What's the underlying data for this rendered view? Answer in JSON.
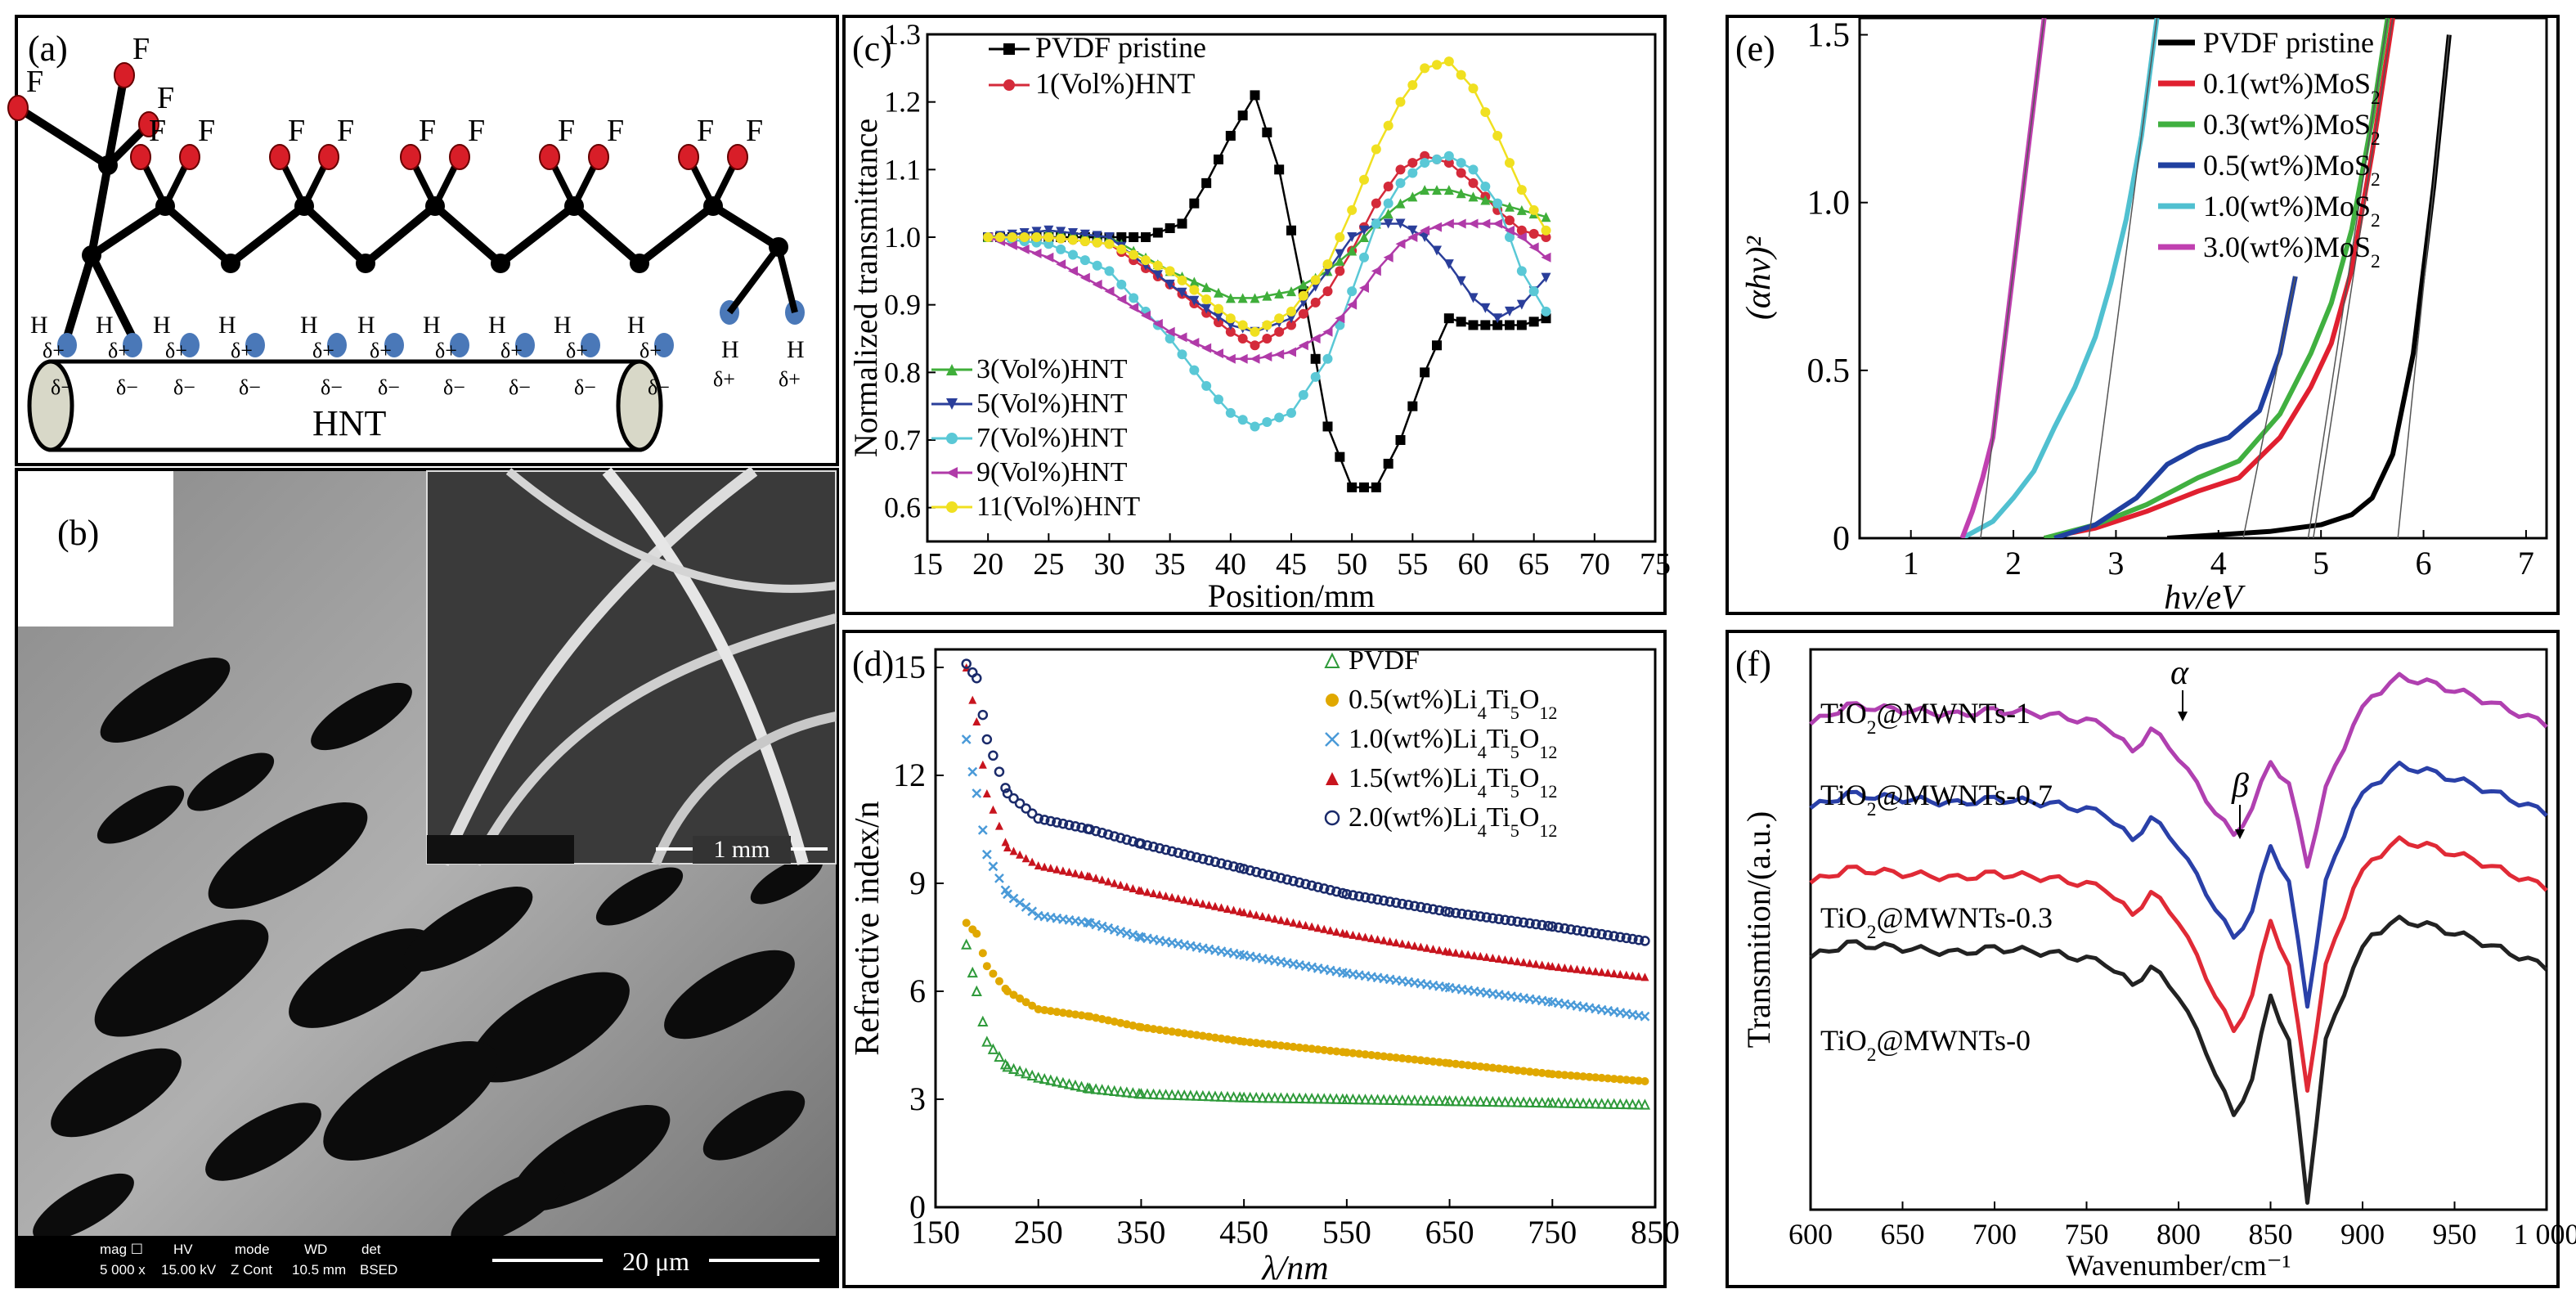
{
  "panels": {
    "a": {
      "label": "(a)",
      "hnt_label": "HNT",
      "fluorine": "F",
      "hydrogen": "H",
      "delta_plus": "δ+",
      "delta_minus": "δ−"
    },
    "b": {
      "label": "(b)",
      "inset_scale": "1 mm",
      "main_scale": "20 μm",
      "sem_bar": {
        "mag": "mag ☐",
        "mag_val": "5 000 x",
        "hv": "HV",
        "hv_val": "15.00 kV",
        "mode": "mode",
        "mode_val": "Z Cont",
        "wd": "WD",
        "wd_val": "10.5 mm",
        "det": "det",
        "det_val": "BSED"
      }
    }
  },
  "chart_data": [
    {
      "panel": "(c)",
      "type": "line",
      "xlabel": "Position/mm",
      "ylabel": "Normalized transmittance",
      "xlim": [
        15,
        75
      ],
      "ylim": [
        0.55,
        1.3
      ],
      "xticks": [
        "15",
        "20",
        "25",
        "30",
        "35",
        "40",
        "45",
        "50",
        "55",
        "60",
        "65",
        "70",
        "75"
      ],
      "yticks": [
        "0.6",
        "0.7",
        "0.8",
        "0.9",
        "1.0",
        "1.1",
        "1.2",
        "1.3"
      ],
      "legend_top": [
        "PVDF pristine",
        "1(Vol%)HNT"
      ],
      "legend_bottom": [
        "3(Vol%)HNT",
        "5(Vol%)HNT",
        "7(Vol%)HNT",
        "9(Vol%)HNT",
        "11(Vol%)HNT"
      ],
      "series": [
        {
          "name": "PVDF pristine",
          "color": "#000000",
          "marker": "square",
          "x": [
            20,
            25,
            30,
            33,
            36,
            38,
            40,
            42,
            44,
            46,
            48,
            50,
            52,
            54,
            56,
            58,
            60,
            62,
            64,
            66
          ],
          "y": [
            1.0,
            1.0,
            1.0,
            1.0,
            1.02,
            1.08,
            1.15,
            1.21,
            1.1,
            0.92,
            0.72,
            0.63,
            0.63,
            0.7,
            0.8,
            0.88,
            0.87,
            0.87,
            0.87,
            0.88
          ]
        },
        {
          "name": "1(Vol%)HNT",
          "color": "#d42a3a",
          "marker": "circle",
          "x": [
            20,
            25,
            30,
            35,
            40,
            42,
            45,
            48,
            50,
            52,
            54,
            56,
            58,
            60,
            62,
            64,
            66
          ],
          "y": [
            1.0,
            1.0,
            0.99,
            0.93,
            0.86,
            0.84,
            0.87,
            0.92,
            0.98,
            1.05,
            1.1,
            1.12,
            1.11,
            1.08,
            1.04,
            1.01,
            1.0
          ]
        },
        {
          "name": "3(Vol%)HNT",
          "color": "#3fae3a",
          "marker": "triangle",
          "x": [
            20,
            25,
            30,
            35,
            40,
            42,
            45,
            48,
            50,
            52,
            54,
            56,
            58,
            60,
            62,
            64,
            66
          ],
          "y": [
            1.0,
            1.01,
            1.0,
            0.95,
            0.91,
            0.91,
            0.92,
            0.95,
            0.98,
            1.02,
            1.05,
            1.07,
            1.07,
            1.06,
            1.05,
            1.04,
            1.03
          ]
        },
        {
          "name": "5(Vol%)HNT",
          "color": "#2a3e9a",
          "marker": "tri-down",
          "x": [
            20,
            25,
            30,
            35,
            40,
            42,
            45,
            48,
            50,
            52,
            54,
            56,
            58,
            60,
            62,
            64,
            66
          ],
          "y": [
            1.0,
            1.01,
            1.0,
            0.93,
            0.87,
            0.86,
            0.88,
            0.95,
            1.0,
            1.02,
            1.02,
            1.0,
            0.96,
            0.91,
            0.88,
            0.9,
            0.94
          ]
        },
        {
          "name": "7(Vol%)HNT",
          "color": "#5ac8d6",
          "marker": "circle",
          "x": [
            20,
            25,
            30,
            35,
            38,
            40,
            42,
            45,
            48,
            50,
            52,
            54,
            56,
            58,
            60,
            62,
            64,
            66
          ],
          "y": [
            1.0,
            0.99,
            0.95,
            0.85,
            0.78,
            0.74,
            0.72,
            0.74,
            0.82,
            0.92,
            1.02,
            1.08,
            1.11,
            1.12,
            1.1,
            1.05,
            0.95,
            0.89
          ]
        },
        {
          "name": "9(Vol%)HNT",
          "color": "#b03aa8",
          "marker": "tri-left",
          "x": [
            20,
            25,
            30,
            35,
            40,
            42,
            45,
            48,
            50,
            52,
            54,
            56,
            58,
            60,
            62,
            64,
            66
          ],
          "y": [
            1.0,
            0.97,
            0.92,
            0.86,
            0.82,
            0.82,
            0.83,
            0.86,
            0.9,
            0.95,
            0.99,
            1.01,
            1.02,
            1.02,
            1.02,
            1.0,
            0.97
          ]
        },
        {
          "name": "11(Vol%)HNT",
          "color": "#f0e020",
          "marker": "circle",
          "x": [
            20,
            25,
            30,
            35,
            40,
            42,
            45,
            48,
            50,
            52,
            54,
            56,
            58,
            60,
            62,
            64,
            66
          ],
          "y": [
            1.0,
            1.0,
            0.99,
            0.95,
            0.88,
            0.86,
            0.89,
            0.96,
            1.04,
            1.13,
            1.2,
            1.25,
            1.26,
            1.22,
            1.15,
            1.07,
            1.01
          ]
        }
      ]
    },
    {
      "panel": "(d)",
      "type": "line",
      "xlabel": "λ/nm",
      "ylabel": "Refractive index/n",
      "xlim": [
        150,
        850
      ],
      "ylim": [
        0,
        15.5
      ],
      "xticks": [
        "150",
        "250",
        "350",
        "450",
        "550",
        "650",
        "750",
        "850"
      ],
      "yticks": [
        "0",
        "3",
        "6",
        "9",
        "12",
        "15"
      ],
      "legend_position": "top-right",
      "series": [
        {
          "name": "PVDF",
          "color": "#2e9a3a",
          "marker": "tri-open",
          "x": [
            180,
            190,
            200,
            220,
            250,
            300,
            350,
            450,
            550,
            650,
            750,
            840
          ],
          "y": [
            7.3,
            6.0,
            4.6,
            3.9,
            3.6,
            3.3,
            3.15,
            3.05,
            3.0,
            2.95,
            2.9,
            2.85
          ]
        },
        {
          "name": "0.5(wt%)Li4Ti5O12",
          "color": "#e0a800",
          "marker": "circle",
          "x": [
            180,
            190,
            200,
            220,
            250,
            300,
            350,
            450,
            550,
            650,
            750,
            840
          ],
          "y": [
            7.9,
            7.6,
            6.7,
            6.0,
            5.5,
            5.3,
            5.0,
            4.6,
            4.3,
            4.0,
            3.7,
            3.5
          ]
        },
        {
          "name": "1.0(wt%)Li4Ti5O12",
          "color": "#4a9ad8",
          "marker": "cross",
          "x": [
            180,
            190,
            200,
            220,
            250,
            300,
            350,
            450,
            550,
            650,
            750,
            840
          ],
          "y": [
            13.0,
            11.5,
            9.8,
            8.7,
            8.1,
            7.9,
            7.5,
            7.0,
            6.5,
            6.1,
            5.7,
            5.3
          ]
        },
        {
          "name": "1.5(wt%)Li4Ti5O12",
          "color": "#c8141e",
          "marker": "triangle",
          "x": [
            180,
            190,
            200,
            220,
            250,
            300,
            350,
            450,
            550,
            650,
            750,
            840
          ],
          "y": [
            15.0,
            13.5,
            11.5,
            10.0,
            9.5,
            9.2,
            8.8,
            8.2,
            7.6,
            7.1,
            6.7,
            6.4
          ]
        },
        {
          "name": "2.0(wt%)Li4Ti5O12",
          "color": "#1a2a6a",
          "marker": "circle-open",
          "x": [
            180,
            190,
            200,
            220,
            250,
            300,
            350,
            450,
            550,
            650,
            750,
            840
          ],
          "y": [
            15.1,
            14.7,
            13.0,
            11.5,
            10.8,
            10.5,
            10.1,
            9.4,
            8.7,
            8.2,
            7.8,
            7.4
          ]
        }
      ]
    },
    {
      "panel": "(e)",
      "type": "line",
      "xlabel": "hv/eV",
      "ylabel": "(αhv)²",
      "xlim": [
        0.5,
        7.2
      ],
      "ylim": [
        0,
        1.55
      ],
      "xticks": [
        "1",
        "2",
        "3",
        "4",
        "5",
        "6",
        "7"
      ],
      "yticks": [
        "0",
        "0.5",
        "1.0",
        "1.5"
      ],
      "legend_position": "top-right",
      "series": [
        {
          "name": "PVDF pristine",
          "color": "#000000",
          "x": [
            3.5,
            4.0,
            4.5,
            5.0,
            5.3,
            5.5,
            5.7,
            5.9,
            6.1,
            6.25
          ],
          "y": [
            0.0,
            0.01,
            0.02,
            0.04,
            0.07,
            0.12,
            0.25,
            0.55,
            1.05,
            1.5
          ]
        },
        {
          "name": "0.1(wt%)MoS2",
          "color": "#e02030",
          "x": [
            2.3,
            2.8,
            3.3,
            3.8,
            4.2,
            4.6,
            4.9,
            5.1,
            5.3,
            5.5,
            5.7
          ],
          "y": [
            0.0,
            0.03,
            0.08,
            0.14,
            0.18,
            0.3,
            0.45,
            0.58,
            0.8,
            1.15,
            1.55
          ]
        },
        {
          "name": "0.3(wt%)MoS2",
          "color": "#40b040",
          "x": [
            2.3,
            2.8,
            3.3,
            3.8,
            4.2,
            4.6,
            4.9,
            5.1,
            5.3,
            5.5,
            5.65
          ],
          "y": [
            0.0,
            0.04,
            0.1,
            0.18,
            0.23,
            0.37,
            0.55,
            0.7,
            0.92,
            1.25,
            1.55
          ]
        },
        {
          "name": "0.5(wt%)MoS2",
          "color": "#2040a0",
          "x": [
            2.4,
            2.8,
            3.2,
            3.5,
            3.8,
            4.1,
            4.4,
            4.6,
            4.75
          ],
          "y": [
            0.0,
            0.04,
            0.12,
            0.22,
            0.27,
            0.3,
            0.38,
            0.55,
            0.78
          ]
        },
        {
          "name": "1.0(wt%)MoS2",
          "color": "#50c0d0",
          "x": [
            1.5,
            1.8,
            2.0,
            2.2,
            2.4,
            2.6,
            2.8,
            2.95,
            3.1,
            3.25,
            3.4
          ],
          "y": [
            0.0,
            0.05,
            0.12,
            0.2,
            0.33,
            0.45,
            0.6,
            0.76,
            0.95,
            1.2,
            1.55
          ]
        },
        {
          "name": "3.0(wt%)MoS2",
          "color": "#c040b0",
          "x": [
            1.5,
            1.6,
            1.7,
            1.8,
            1.9,
            2.0,
            2.1,
            2.2,
            2.3
          ],
          "y": [
            0.0,
            0.08,
            0.18,
            0.3,
            0.55,
            0.8,
            1.05,
            1.3,
            1.55
          ]
        }
      ]
    },
    {
      "panel": "(f)",
      "type": "line",
      "xlabel": "Wavenumber/cm⁻¹",
      "ylabel": "Transmition/(a.u.)",
      "xlim": [
        600,
        1000
      ],
      "xticks": [
        "600",
        "650",
        "700",
        "750",
        "800",
        "850",
        "900",
        "950",
        "1 000"
      ],
      "annotations": [
        "α",
        "β"
      ],
      "series": [
        {
          "name": "TiO2@MWNTs-1",
          "color": "#b040b0",
          "x": [
            600,
            620,
            650,
            680,
            700,
            730,
            760,
            775,
            785,
            800,
            815,
            830,
            840,
            850,
            860,
            870,
            880,
            895,
            905,
            920,
            935,
            960,
            1000
          ],
          "y": [
            4.2,
            4.4,
            4.35,
            4.3,
            4.35,
            4.3,
            4.2,
            3.9,
            4.15,
            3.85,
            3.4,
            3.0,
            3.3,
            3.8,
            3.55,
            2.7,
            3.5,
            4.2,
            4.5,
            4.7,
            4.65,
            4.5,
            4.2
          ]
        },
        {
          "name": "TiO2@MWNTs-0.7",
          "color": "#2a40a8",
          "x": [
            600,
            620,
            650,
            680,
            700,
            730,
            760,
            775,
            785,
            800,
            815,
            830,
            840,
            850,
            860,
            870,
            880,
            895,
            905,
            920,
            935,
            960,
            1000
          ],
          "y": [
            3.3,
            3.45,
            3.4,
            3.35,
            3.4,
            3.35,
            3.25,
            2.95,
            3.2,
            2.9,
            2.4,
            1.9,
            2.2,
            2.9,
            2.5,
            1.2,
            2.5,
            3.3,
            3.55,
            3.75,
            3.7,
            3.55,
            3.25
          ]
        },
        {
          "name": "TiO2@MWNTs-0.3",
          "color": "#e02a36",
          "x": [
            600,
            620,
            650,
            680,
            700,
            730,
            760,
            775,
            785,
            800,
            815,
            830,
            840,
            850,
            860,
            870,
            880,
            895,
            905,
            920,
            935,
            960,
            1000
          ],
          "y": [
            2.5,
            2.65,
            2.6,
            2.55,
            2.6,
            2.55,
            2.45,
            2.15,
            2.4,
            2.1,
            1.5,
            0.9,
            1.3,
            2.1,
            1.6,
            0.3,
            1.6,
            2.45,
            2.75,
            2.95,
            2.9,
            2.75,
            2.45
          ]
        },
        {
          "name": "TiO2@MWNTs-0",
          "color": "#222222",
          "x": [
            600,
            620,
            650,
            680,
            700,
            730,
            760,
            775,
            785,
            800,
            815,
            830,
            840,
            850,
            860,
            870,
            880,
            895,
            905,
            920,
            935,
            960,
            1000
          ],
          "y": [
            1.7,
            1.85,
            1.8,
            1.75,
            1.8,
            1.75,
            1.65,
            1.4,
            1.6,
            1.3,
            0.7,
            0.0,
            0.4,
            1.3,
            0.8,
            -0.9,
            0.8,
            1.6,
            1.95,
            2.1,
            2.05,
            1.9,
            1.6
          ]
        }
      ]
    }
  ]
}
